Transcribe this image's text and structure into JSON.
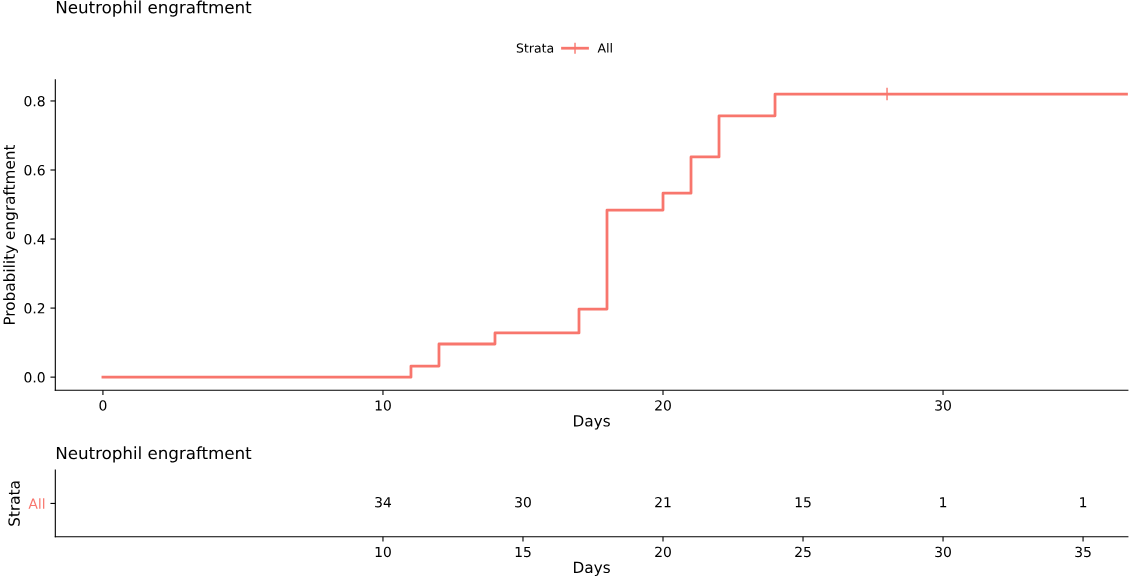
{
  "chart_data": [
    {
      "type": "step",
      "title": "Neutrophil engraftment",
      "xlabel": "Days",
      "ylabel": "Probability engraftment",
      "legend_title": "Strata",
      "legend": "top",
      "xlim": [
        -1.7,
        36.6
      ],
      "xticks": [
        0,
        10,
        20,
        30
      ],
      "ylim": [
        -0.038,
        0.861
      ],
      "yticks": [
        {
          "value": 0,
          "label": "0.0"
        },
        0.2,
        0.4,
        0.6,
        0.8
      ],
      "grid": false,
      "series": [
        {
          "name": "All",
          "color": "#f8766d",
          "x": [
            0,
            11,
            12,
            14,
            17,
            18,
            20,
            21,
            22,
            24,
            36.6
          ],
          "values": [
            0,
            0.032,
            0.096,
            0.128,
            0.197,
            0.484,
            0.533,
            0.638,
            0.757,
            0.82,
            0.82
          ]
        },
        {
          "type": "scatter",
          "marker": "cross",
          "color": "#f8766d",
          "x": [
            28
          ],
          "values": [
            0.82
          ]
        }
      ]
    },
    {
      "type": "heatmap",
      "title": "Neutrophil engraftment",
      "xlabel": "Days",
      "ylabel": "Strata",
      "xlim": [
        -1.7,
        36.6
      ],
      "xticks": [
        10,
        15,
        20,
        25,
        30,
        35
      ],
      "data_labels": true,
      "x": [
        10,
        15,
        20,
        25,
        30,
        35
      ],
      "y_categories": [
        "All"
      ],
      "colors": [
        "#f8766d"
      ],
      "cells": [
        [
          34,
          30,
          21,
          15,
          1,
          1
        ]
      ]
    }
  ]
}
